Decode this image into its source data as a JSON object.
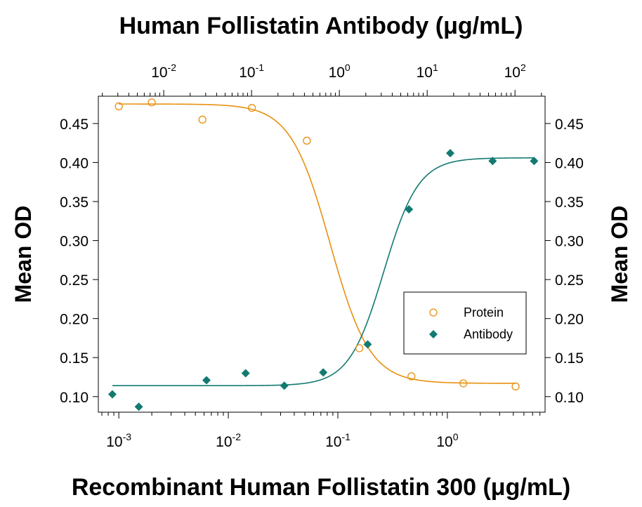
{
  "chart_data": {
    "type": "scatter",
    "title": "Human Follistatin Antibody (μg/mL)",
    "xlabel": "Recombinant Human Follistatin 300 (μg/mL)",
    "ylabel": "Mean OD",
    "ylabel_right": "Mean OD",
    "x_scale": "log",
    "x_bottom_range": [
      0.00065,
      7.8
    ],
    "x_top_range": [
      0.0018,
      220
    ],
    "x_bottom_ticks": [
      {
        "base": "10",
        "exp": "-3",
        "value": 0.001
      },
      {
        "base": "10",
        "exp": "-2",
        "value": 0.01
      },
      {
        "base": "10",
        "exp": "-1",
        "value": 0.1
      },
      {
        "base": "10",
        "exp": "0",
        "value": 1
      }
    ],
    "x_top_ticks": [
      {
        "base": "10",
        "exp": "-2",
        "value": 0.01
      },
      {
        "base": "10",
        "exp": "-1",
        "value": 0.1
      },
      {
        "base": "10",
        "exp": "0",
        "value": 1
      },
      {
        "base": "10",
        "exp": "1",
        "value": 10
      },
      {
        "base": "10",
        "exp": "2",
        "value": 100
      }
    ],
    "ylim": [
      0.08,
      0.485
    ],
    "y_ticks": [
      "0.10",
      "0.15",
      "0.20",
      "0.25",
      "0.30",
      "0.35",
      "0.40",
      "0.45"
    ],
    "grid": false,
    "legend_position": "lower-right",
    "series": [
      {
        "name": "Protein",
        "axis": "bottom",
        "marker": "open-circle",
        "color": "#E8900F",
        "x": [
          0.001,
          0.002,
          0.0058,
          0.0164,
          0.0521,
          0.157,
          0.47,
          1.4,
          4.2
        ],
        "y": [
          0.472,
          0.477,
          0.455,
          0.47,
          0.428,
          0.162,
          0.126,
          0.117,
          0.113
        ],
        "fit": {
          "top": 0.475,
          "bottom": 0.117,
          "ec50": 0.085,
          "hill": 2.4
        }
      },
      {
        "name": "Antibody",
        "axis": "top",
        "marker": "filled-diamond",
        "color": "#127A70",
        "x": [
          0.0026,
          0.0052,
          0.0307,
          0.0856,
          0.236,
          0.655,
          2.1,
          6.2,
          18.3,
          55.6,
          165
        ],
        "y": [
          0.103,
          0.087,
          0.121,
          0.13,
          0.114,
          0.131,
          0.167,
          0.34,
          0.412,
          0.402,
          0.402
        ],
        "fit": {
          "top": 0.406,
          "bottom": 0.114,
          "ec50": 3.2,
          "hill": 2.2
        }
      }
    ]
  }
}
